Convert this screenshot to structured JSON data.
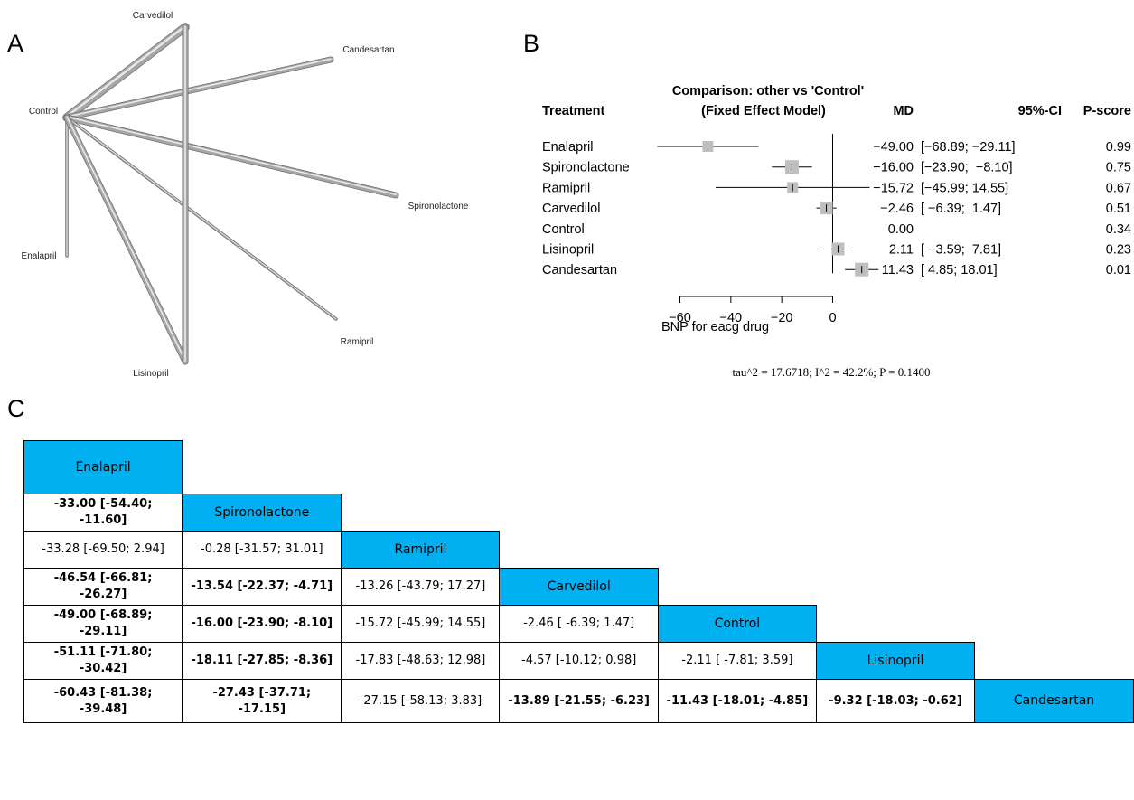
{
  "panels": {
    "a": "A",
    "b": "B",
    "c": "C"
  },
  "network": {
    "nodes": [
      {
        "name": "Carvedilol"
      },
      {
        "name": "Candesartan"
      },
      {
        "name": "Control"
      },
      {
        "name": "Spironolactone"
      },
      {
        "name": "Enalapril"
      },
      {
        "name": "Ramipril"
      },
      {
        "name": "Lisinopril"
      }
    ],
    "edges": [
      {
        "from": "Control",
        "to": "Carvedilol",
        "weight": "thick"
      },
      {
        "from": "Control",
        "to": "Candesartan",
        "weight": "medium"
      },
      {
        "from": "Control",
        "to": "Spironolactone",
        "weight": "medium"
      },
      {
        "from": "Control",
        "to": "Enalapril",
        "weight": "thin"
      },
      {
        "from": "Control",
        "to": "Ramipril",
        "weight": "thin"
      },
      {
        "from": "Control",
        "to": "Lisinopril",
        "weight": "medium"
      },
      {
        "from": "Carvedilol",
        "to": "Lisinopril",
        "weight": "medium"
      }
    ],
    "colors": {
      "edge": "#a6a6a6",
      "edge_dark": "#6e6e6e"
    }
  },
  "forest": {
    "header": {
      "treatment": "Treatment",
      "comparison_line1": "Comparison: other vs 'Control'",
      "comparison_line2": "(Fixed Effect Model)",
      "md": "MD",
      "ci": "95%-CI",
      "pscore": "P-score"
    },
    "rows": [
      {
        "treatment": "Enalapril",
        "md": "−49.00",
        "ci": "[−68.89; −29.11]",
        "pscore": "0.99"
      },
      {
        "treatment": "Spironolactone",
        "md": "−16.00",
        "ci": "[−23.90;  −8.10]",
        "pscore": "0.75"
      },
      {
        "treatment": "Ramipril",
        "md": "−15.72",
        "ci": "[−45.99; 14.55]",
        "pscore": "0.67"
      },
      {
        "treatment": "Carvedilol",
        "md": "−2.46",
        "ci": "[ −6.39;  1.47]",
        "pscore": "0.51"
      },
      {
        "treatment": "Control",
        "md": "0.00",
        "ci": "",
        "pscore": "0.34"
      },
      {
        "treatment": "Lisinopril",
        "md": "2.11",
        "ci": "[ −3.59;  7.81]",
        "pscore": "0.23"
      },
      {
        "treatment": "Candesartan",
        "md": "11.43",
        "ci": "[ 4.85; 18.01]",
        "pscore": "0.01"
      }
    ],
    "xlabel": "BNP for eacg drug",
    "xticks": [
      "−60",
      "−40",
      "−20",
      "0"
    ],
    "heterogeneity": "tau^2 = 17.6718; I^2 = 42.2%; P = 0.1400",
    "colors": {
      "box": "#bfbfbf"
    }
  },
  "chart_data": {
    "type": "scatter",
    "title": "Comparison: other vs 'Control' (Fixed Effect Model)",
    "xlabel": "BNP for eacg drug",
    "xlim": [
      -60,
      18
    ],
    "xticks": [
      -60,
      -40,
      -20,
      0
    ],
    "reference_line": 0,
    "series": [
      {
        "name": "MD",
        "categories": [
          "Enalapril",
          "Spironolactone",
          "Ramipril",
          "Carvedilol",
          "Control",
          "Lisinopril",
          "Candesartan"
        ],
        "values": [
          -49.0,
          -16.0,
          -15.72,
          -2.46,
          0.0,
          2.11,
          11.43
        ],
        "lower": [
          -68.89,
          -23.9,
          -45.99,
          -6.39,
          null,
          -3.59,
          4.85
        ],
        "upper": [
          -29.11,
          -8.1,
          14.55,
          1.47,
          null,
          7.81,
          18.01
        ],
        "box_weight": [
          0.6,
          0.75,
          0.6,
          0.7,
          0,
          0.7,
          0.75
        ]
      }
    ]
  },
  "league": {
    "rows": [
      [
        {
          "t": "Enalapril",
          "d": true
        }
      ],
      [
        {
          "t": "-33.00 [-54.40; -11.60]",
          "s": true
        },
        {
          "t": "Spironolactone",
          "d": true
        }
      ],
      [
        {
          "t": "-33.28 [-69.50; 2.94]",
          "s": false
        },
        {
          "t": "-0.28 [-31.57; 31.01]",
          "s": false
        },
        {
          "t": "Ramipril",
          "d": true
        }
      ],
      [
        {
          "t": "-46.54 [-66.81; -26.27]",
          "s": true
        },
        {
          "t": "-13.54 [-22.37; -4.71]",
          "s": true
        },
        {
          "t": "-13.26 [-43.79; 17.27]",
          "s": false
        },
        {
          "t": "Carvedilol",
          "d": true
        }
      ],
      [
        {
          "t": "-49.00 [-68.89; -29.11]",
          "s": true
        },
        {
          "t": "-16.00 [-23.90; -8.10]",
          "s": true
        },
        {
          "t": "-15.72 [-45.99; 14.55]",
          "s": false
        },
        {
          "t": "-2.46 [ -6.39; 1.47]",
          "s": false
        },
        {
          "t": "Control",
          "d": true
        }
      ],
      [
        {
          "t": "-51.11 [-71.80; -30.42]",
          "s": true
        },
        {
          "t": "-18.11 [-27.85; -8.36]",
          "s": true
        },
        {
          "t": "-17.83 [-48.63; 12.98]",
          "s": false
        },
        {
          "t": "-4.57 [-10.12; 0.98]",
          "s": false
        },
        {
          "t": "-2.11 [ -7.81; 3.59]",
          "s": false
        },
        {
          "t": "Lisinopril",
          "d": true
        }
      ],
      [
        {
          "t": "-60.43 [-81.38; -39.48]",
          "s": true
        },
        {
          "t": "-27.43 [-37.71; -17.15]",
          "s": true
        },
        {
          "t": "-27.15 [-58.13; 3.83]",
          "s": false
        },
        {
          "t": "-13.89 [-21.55; -6.23]",
          "s": true
        },
        {
          "t": "-11.43 [-18.01; -4.85]",
          "s": true
        },
        {
          "t": "-9.32 [-18.03; -0.62]",
          "s": true
        },
        {
          "t": "Candesartan",
          "d": true
        }
      ]
    ],
    "colors": {
      "diagonal": "#00b0f0"
    }
  }
}
